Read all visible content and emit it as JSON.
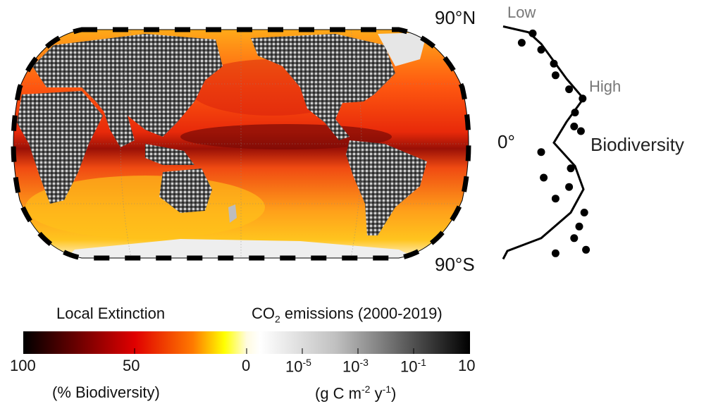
{
  "map": {
    "projection": "robinson",
    "colors": {
      "ocean_high": "#ffd21f",
      "ocean_mid": "#ff7a10",
      "ocean_low": "#e03010",
      "ocean_darkest": "#7a0a05",
      "land_dark": "#3a3a3a",
      "land_light": "#d8d8d8",
      "ice": "#f0f0f0",
      "frame": "#000000"
    }
  },
  "profile": {
    "top_label": "90°N",
    "mid_label": "0°",
    "bottom_label": "90°S",
    "low_label": "Low",
    "high_label": "High",
    "axis_label": "Biodiversity",
    "curve_relative": [
      [
        0.0,
        -1.0
      ],
      [
        0.3,
        -0.95
      ],
      [
        0.45,
        -0.85
      ],
      [
        0.6,
        -0.7
      ],
      [
        0.75,
        -0.55
      ],
      [
        0.95,
        -0.38
      ],
      [
        0.75,
        -0.18
      ],
      [
        0.6,
        0.0
      ],
      [
        0.85,
        0.2
      ],
      [
        0.95,
        0.4
      ],
      [
        0.8,
        0.6
      ],
      [
        0.45,
        0.82
      ],
      [
        0.05,
        0.93
      ],
      [
        0.0,
        1.0
      ]
    ],
    "points_relative": [
      [
        0.35,
        -0.94
      ],
      [
        0.22,
        -0.86
      ],
      [
        0.45,
        -0.8
      ],
      [
        0.6,
        -0.68
      ],
      [
        0.62,
        -0.58
      ],
      [
        0.78,
        -0.46
      ],
      [
        0.94,
        -0.38
      ],
      [
        0.85,
        -0.26
      ],
      [
        0.84,
        -0.14
      ],
      [
        0.92,
        -0.1
      ],
      [
        0.45,
        0.08
      ],
      [
        0.8,
        0.22
      ],
      [
        0.48,
        0.3
      ],
      [
        0.78,
        0.38
      ],
      [
        0.62,
        0.48
      ],
      [
        0.96,
        0.6
      ],
      [
        0.9,
        0.72
      ],
      [
        0.84,
        0.82
      ],
      [
        0.98,
        0.92
      ],
      [
        0.62,
        0.95
      ]
    ]
  },
  "legend": {
    "left_title": "Local Extinction",
    "right_title_prefix": "CO",
    "right_title_sub": "2",
    "right_title_suffix": " emissions (2000-2019)",
    "ticks": [
      "100",
      "50",
      "0",
      "10",
      "10",
      "10",
      "10"
    ],
    "tick_sups": [
      "",
      "",
      "",
      "-5",
      "-3",
      "-1",
      ""
    ],
    "left_unit": "(% Biodiversity)",
    "right_unit_a": "(g C m",
    "right_unit_sup1": "-2",
    "right_unit_b": " y",
    "right_unit_sup2": "-1",
    "right_unit_c": ")"
  }
}
